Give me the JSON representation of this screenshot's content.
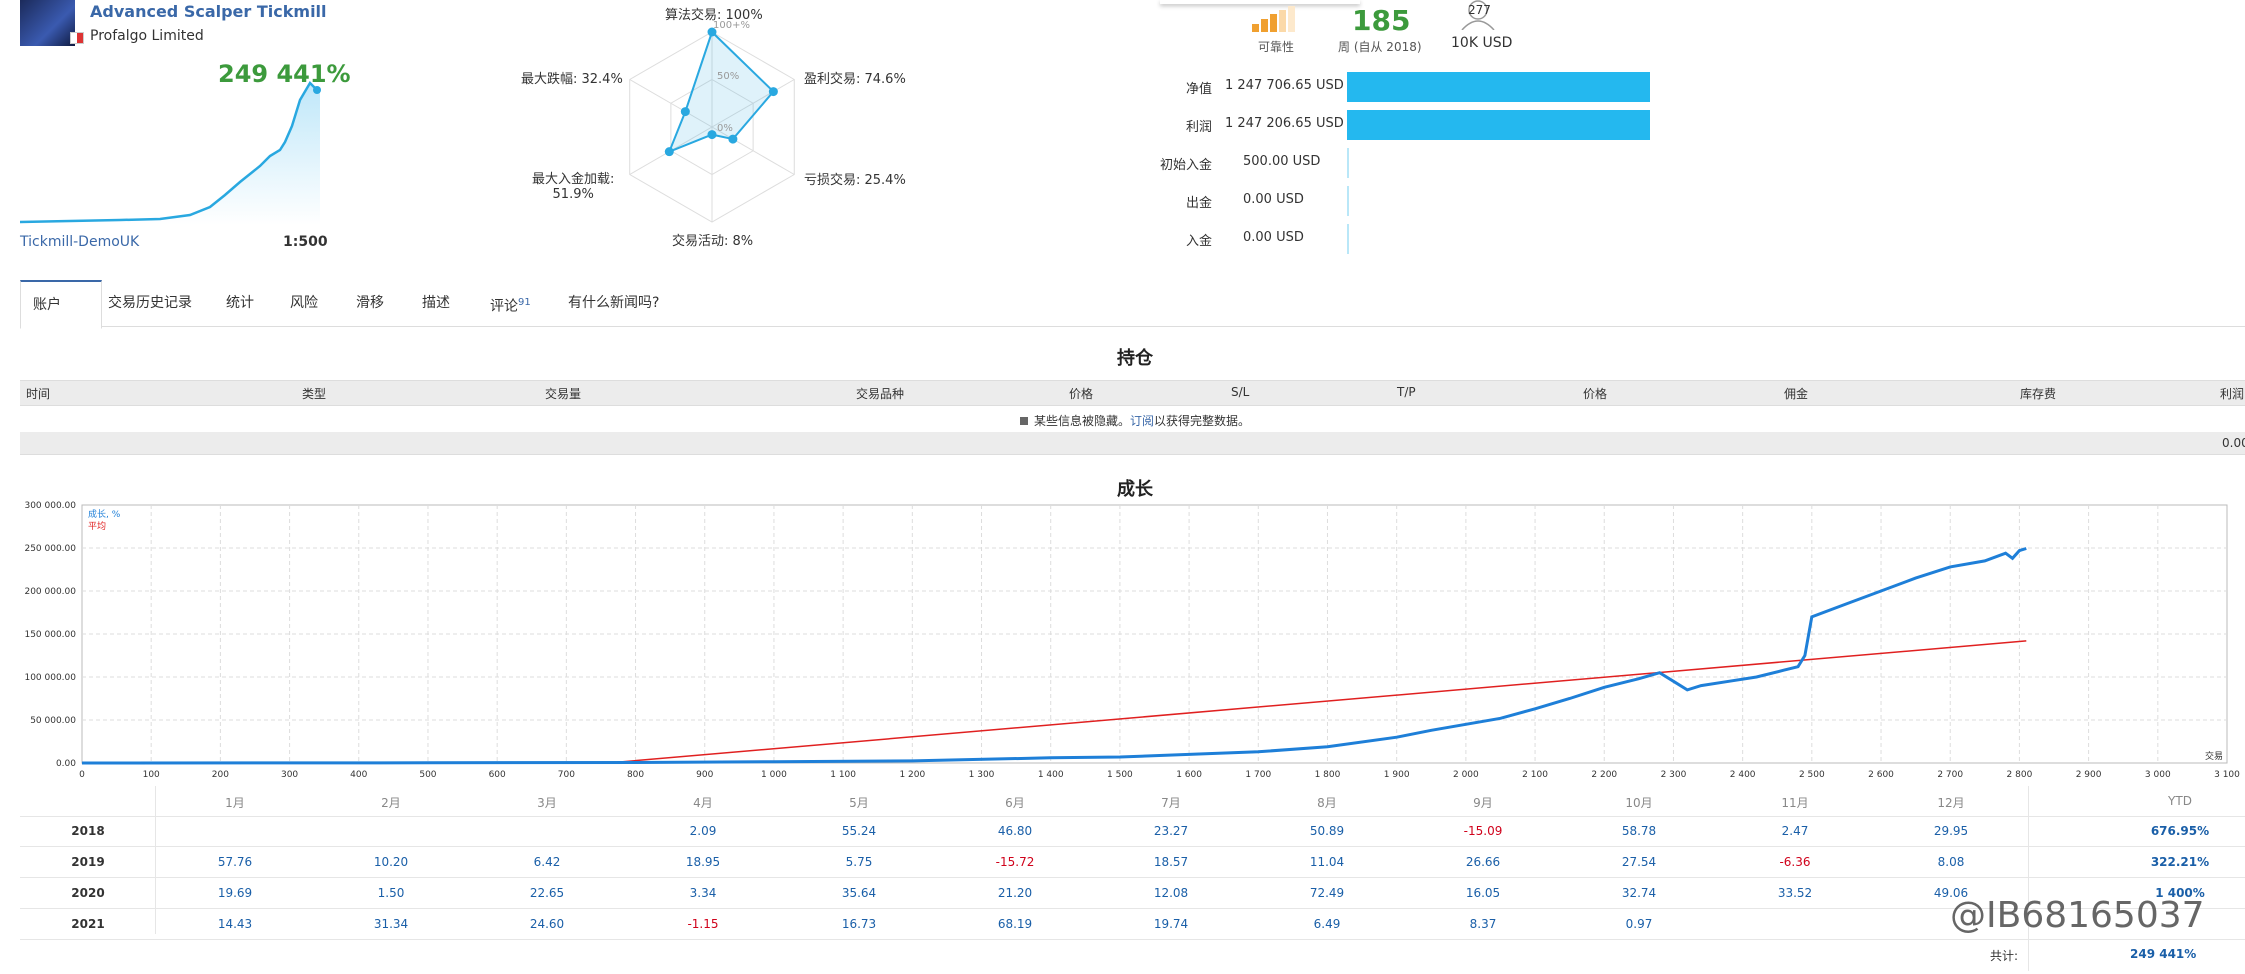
{
  "signal": {
    "title": "Advanced Scalper Tickmill",
    "company": "Profalgo Limited",
    "growth": "249 441%",
    "broker": "Tickmill-DemoUK",
    "leverage": "1:500"
  },
  "radar": {
    "algo": "算法交易: 100%",
    "profit_trades": "盈利交易: 74.6%",
    "loss_trades": "亏损交易: 25.4%",
    "activity": "交易活动: 8%",
    "max_deposit_load": "最大入金加载:",
    "max_deposit_load_val": "51.9%",
    "max_drawdown": "最大跌幅: 32.4%",
    "ring_100": "100+%",
    "ring_50": "50%",
    "ring_0": "0%",
    "levels": {
      "algo": 1.0,
      "profit_trades": 0.746,
      "loss_trades": 0.254,
      "activity": 0.08,
      "max_deposit_load": 0.519,
      "max_drawdown": 0.324
    }
  },
  "stats": {
    "reliability_label": "可靠性",
    "weeks_value": "185",
    "weeks_label": "周 (自从 2018)",
    "subscribers_value": "277",
    "subscribers_label": "10K USD"
  },
  "balances": [
    {
      "label": "净值",
      "value": "1 247 706.65 USD",
      "share": 1.0
    },
    {
      "label": "利润",
      "value": "1 247 206.65 USD",
      "share": 1.0
    },
    {
      "label": "初始入金",
      "value": "500.00 USD",
      "share": 0
    },
    {
      "label": "出金",
      "value": "0.00 USD",
      "share": 0
    },
    {
      "label": "入金",
      "value": "0.00 USD",
      "share": 0
    }
  ],
  "tabs": [
    {
      "label": "账户",
      "badge": ""
    },
    {
      "label": "交易历史记录",
      "badge": ""
    },
    {
      "label": "统计",
      "badge": ""
    },
    {
      "label": "风险",
      "badge": ""
    },
    {
      "label": "滑移",
      "badge": ""
    },
    {
      "label": "描述",
      "badge": ""
    },
    {
      "label": "评论",
      "badge": "91"
    },
    {
      "label": "有什么新闻吗?",
      "badge": ""
    }
  ],
  "positions": {
    "title": "持仓",
    "columns": [
      "时间",
      "类型",
      "交易量",
      "交易品种",
      "价格",
      "S/L",
      "T/P",
      "价格",
      "佣金",
      "库存费",
      "利润"
    ],
    "note_prefix": "某些信息被隐藏。",
    "note_link": "订阅",
    "note_suffix": "以获得完整数据。",
    "total": "0.00"
  },
  "growth_chart": {
    "title": "成长",
    "legend_growth": "成长, %",
    "legend_avg": "平均",
    "x_axis_label": "交易"
  },
  "chart_data": {
    "type": "line",
    "xlim": [
      0,
      3100
    ],
    "ylim": [
      0,
      300000
    ],
    "x_ticks": [
      "0",
      "100",
      "200",
      "300",
      "400",
      "500",
      "600",
      "700",
      "800",
      "900",
      "1 000",
      "1 100",
      "1 200",
      "1 300",
      "1 400",
      "1 500",
      "1 600",
      "1 700",
      "1 800",
      "1 900",
      "2 000",
      "2 100",
      "2 200",
      "2 300",
      "2 400",
      "2 500",
      "2 600",
      "2 700",
      "2 800",
      "2 900",
      "3 000",
      "3 100"
    ],
    "y_ticks": [
      "0.00",
      "50 000.00",
      "100 000.00",
      "150 000.00",
      "200 000.00",
      "250 000.00",
      "300 000.00"
    ],
    "series": [
      {
        "name": "成长, %",
        "color": "#1e7fd8",
        "points": [
          [
            0,
            0
          ],
          [
            500,
            200
          ],
          [
            800,
            600
          ],
          [
            1000,
            1500
          ],
          [
            1200,
            2500
          ],
          [
            1400,
            6000
          ],
          [
            1500,
            7000
          ],
          [
            1600,
            10000
          ],
          [
            1700,
            13000
          ],
          [
            1800,
            19000
          ],
          [
            1900,
            30000
          ],
          [
            1950,
            38000
          ],
          [
            2000,
            45000
          ],
          [
            2050,
            52000
          ],
          [
            2100,
            63000
          ],
          [
            2150,
            75000
          ],
          [
            2200,
            88000
          ],
          [
            2250,
            98000
          ],
          [
            2280,
            105000
          ],
          [
            2300,
            95000
          ],
          [
            2320,
            85000
          ],
          [
            2340,
            90000
          ],
          [
            2380,
            95000
          ],
          [
            2420,
            100000
          ],
          [
            2460,
            108000
          ],
          [
            2480,
            112000
          ],
          [
            2490,
            125000
          ],
          [
            2500,
            170000
          ],
          [
            2550,
            185000
          ],
          [
            2600,
            200000
          ],
          [
            2650,
            215000
          ],
          [
            2700,
            228000
          ],
          [
            2750,
            235000
          ],
          [
            2780,
            244000
          ],
          [
            2790,
            238000
          ],
          [
            2800,
            247000
          ],
          [
            2810,
            249441
          ]
        ]
      },
      {
        "name": "平均",
        "color": "#e02020",
        "points": [
          [
            760,
            0
          ],
          [
            2810,
            142000
          ]
        ]
      }
    ]
  },
  "monthly": {
    "months": [
      "1月",
      "2月",
      "3月",
      "4月",
      "5月",
      "6月",
      "7月",
      "8月",
      "9月",
      "10月",
      "11月",
      "12月",
      "YTD"
    ],
    "rows": [
      {
        "year": "2018",
        "vals": [
          "",
          "",
          "",
          "2.09",
          "55.24",
          "46.80",
          "23.27",
          "50.89",
          "-15.09",
          "58.78",
          "2.47",
          "29.95"
        ],
        "ytd": "676.95%"
      },
      {
        "year": "2019",
        "vals": [
          "57.76",
          "10.20",
          "6.42",
          "18.95",
          "5.75",
          "-15.72",
          "18.57",
          "11.04",
          "26.66",
          "27.54",
          "-6.36",
          "8.08"
        ],
        "ytd": "322.21%"
      },
      {
        "year": "2020",
        "vals": [
          "19.69",
          "1.50",
          "22.65",
          "3.34",
          "35.64",
          "21.20",
          "12.08",
          "72.49",
          "16.05",
          "32.74",
          "33.52",
          "49.06"
        ],
        "ytd": "1 400%"
      },
      {
        "year": "2021",
        "vals": [
          "14.43",
          "31.34",
          "24.60",
          "-1.15",
          "16.73",
          "68.19",
          "19.74",
          "6.49",
          "8.37",
          "0.97",
          "",
          ""
        ],
        "ytd": ""
      }
    ],
    "total_label": "共计:",
    "total_value": "249 441%"
  },
  "watermark": "@IB68165037"
}
